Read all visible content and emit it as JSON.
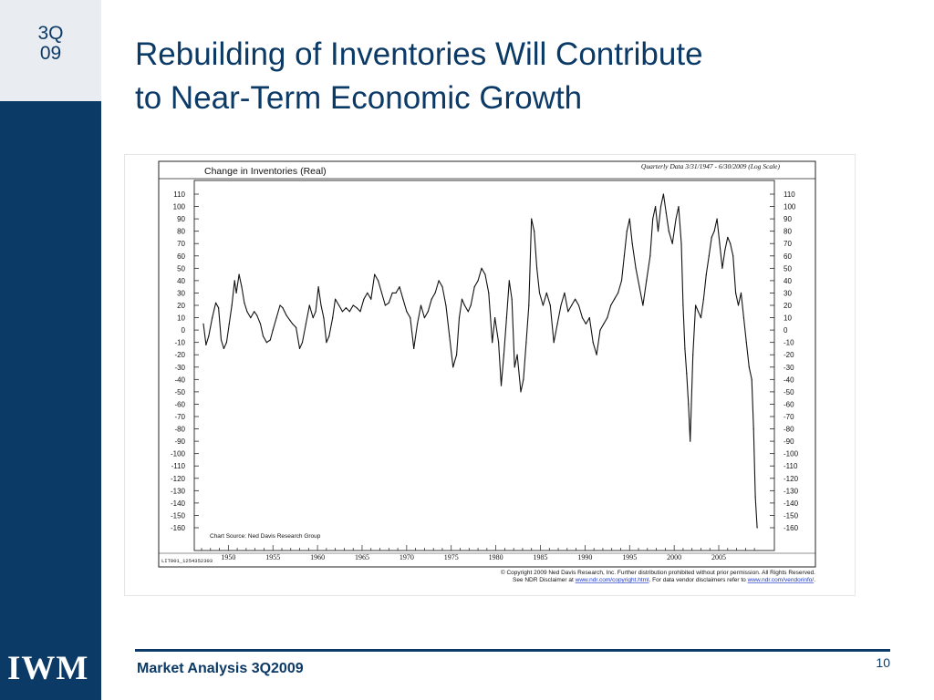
{
  "badge": {
    "quarter": "3Q",
    "year": "09"
  },
  "logo": "IWM",
  "title": {
    "line1": "Rebuilding of Inventories Will Contribute",
    "line2": "to Near-Term Economic Growth"
  },
  "footer": {
    "text": "Market Analysis 3Q2009",
    "page": "10"
  },
  "colors": {
    "navy": "#0c3a66",
    "badge_bg": "#e9ecf1",
    "link": "#1a37c8"
  },
  "chart_data": {
    "type": "line",
    "title": "Change in Inventories (Real)",
    "subtitle": "Quarterly Data 3/31/1947 - 6/30/2009 (Log Scale)",
    "source": "Chart Source: Ned Davis Research Group",
    "id_label": "LIT001_1254352303",
    "copyright_line1": "© Copyright 2009 Ned Davis Research, Inc.  Further distribution prohibited without prior permission.  All Rights Reserved.",
    "copyright_line2a": "See NDR Disclaimer at ",
    "copyright_link1": "www.ndr.com/copyright.html",
    "copyright_line2b": ". For data vendor disclaimers refer to ",
    "copyright_link2": "www.ndr.com/vendorinfo/",
    "copyright_line2c": ".",
    "ylim": [
      -165,
      120
    ],
    "xlim": [
      1947.0,
      2009.6
    ],
    "y_ticks": [
      110,
      100,
      90,
      80,
      70,
      60,
      50,
      40,
      30,
      20,
      10,
      0,
      -10,
      -20,
      -30,
      -40,
      -50,
      -60,
      -70,
      -80,
      -90,
      -100,
      -110,
      -120,
      -130,
      -140,
      -150,
      -160
    ],
    "x_ticks": [
      1950,
      1955,
      1960,
      1965,
      1970,
      1975,
      1980,
      1985,
      1990,
      1995,
      2000,
      2005
    ],
    "grid": false,
    "legend": "none",
    "series": [
      {
        "points": [
          [
            1947.2,
            5
          ],
          [
            1947.5,
            -12
          ],
          [
            1947.8,
            -5
          ],
          [
            1948.2,
            10
          ],
          [
            1948.6,
            22
          ],
          [
            1948.9,
            18
          ],
          [
            1949.2,
            -8
          ],
          [
            1949.5,
            -15
          ],
          [
            1949.8,
            -10
          ],
          [
            1950.1,
            5
          ],
          [
            1950.4,
            20
          ],
          [
            1950.7,
            40
          ],
          [
            1950.9,
            30
          ],
          [
            1951.2,
            45
          ],
          [
            1951.5,
            35
          ],
          [
            1951.8,
            22
          ],
          [
            1952.1,
            15
          ],
          [
            1952.5,
            10
          ],
          [
            1952.9,
            15
          ],
          [
            1953.2,
            12
          ],
          [
            1953.6,
            5
          ],
          [
            1953.9,
            -5
          ],
          [
            1954.3,
            -10
          ],
          [
            1954.7,
            -8
          ],
          [
            1955.0,
            0
          ],
          [
            1955.4,
            10
          ],
          [
            1955.8,
            20
          ],
          [
            1956.1,
            18
          ],
          [
            1956.5,
            12
          ],
          [
            1956.9,
            8
          ],
          [
            1957.2,
            5
          ],
          [
            1957.6,
            2
          ],
          [
            1958.0,
            -15
          ],
          [
            1958.3,
            -10
          ],
          [
            1958.7,
            5
          ],
          [
            1959.1,
            20
          ],
          [
            1959.5,
            10
          ],
          [
            1959.8,
            15
          ],
          [
            1960.1,
            35
          ],
          [
            1960.4,
            20
          ],
          [
            1960.7,
            10
          ],
          [
            1961.0,
            -10
          ],
          [
            1961.3,
            -5
          ],
          [
            1961.7,
            10
          ],
          [
            1962.0,
            25
          ],
          [
            1962.4,
            20
          ],
          [
            1962.8,
            15
          ],
          [
            1963.2,
            18
          ],
          [
            1963.6,
            15
          ],
          [
            1964.0,
            20
          ],
          [
            1964.4,
            18
          ],
          [
            1964.8,
            15
          ],
          [
            1965.2,
            25
          ],
          [
            1965.6,
            30
          ],
          [
            1966.0,
            25
          ],
          [
            1966.4,
            45
          ],
          [
            1966.8,
            40
          ],
          [
            1967.2,
            30
          ],
          [
            1967.6,
            20
          ],
          [
            1968.0,
            22
          ],
          [
            1968.4,
            30
          ],
          [
            1968.8,
            30
          ],
          [
            1969.2,
            35
          ],
          [
            1969.6,
            25
          ],
          [
            1970.0,
            15
          ],
          [
            1970.4,
            10
          ],
          [
            1970.8,
            -15
          ],
          [
            1971.2,
            5
          ],
          [
            1971.6,
            20
          ],
          [
            1972.0,
            10
          ],
          [
            1972.4,
            15
          ],
          [
            1972.8,
            25
          ],
          [
            1973.2,
            30
          ],
          [
            1973.6,
            40
          ],
          [
            1974.0,
            35
          ],
          [
            1974.4,
            20
          ],
          [
            1974.8,
            -5
          ],
          [
            1975.2,
            -30
          ],
          [
            1975.6,
            -20
          ],
          [
            1975.9,
            10
          ],
          [
            1976.2,
            25
          ],
          [
            1976.5,
            20
          ],
          [
            1976.9,
            15
          ],
          [
            1977.2,
            20
          ],
          [
            1977.6,
            35
          ],
          [
            1978.0,
            40
          ],
          [
            1978.4,
            50
          ],
          [
            1978.8,
            45
          ],
          [
            1979.2,
            30
          ],
          [
            1979.6,
            -10
          ],
          [
            1979.9,
            10
          ],
          [
            1980.3,
            -10
          ],
          [
            1980.6,
            -45
          ],
          [
            1980.9,
            -20
          ],
          [
            1981.2,
            10
          ],
          [
            1981.5,
            40
          ],
          [
            1981.8,
            25
          ],
          [
            1982.1,
            -30
          ],
          [
            1982.4,
            -20
          ],
          [
            1982.8,
            -50
          ],
          [
            1983.1,
            -40
          ],
          [
            1983.4,
            -10
          ],
          [
            1983.7,
            20
          ],
          [
            1984.0,
            90
          ],
          [
            1984.3,
            80
          ],
          [
            1984.6,
            50
          ],
          [
            1984.9,
            30
          ],
          [
            1985.3,
            20
          ],
          [
            1985.7,
            30
          ],
          [
            1986.1,
            20
          ],
          [
            1986.5,
            -10
          ],
          [
            1986.9,
            5
          ],
          [
            1987.3,
            20
          ],
          [
            1987.7,
            30
          ],
          [
            1988.1,
            15
          ],
          [
            1988.5,
            20
          ],
          [
            1988.9,
            25
          ],
          [
            1989.3,
            20
          ],
          [
            1989.7,
            10
          ],
          [
            1990.1,
            5
          ],
          [
            1990.5,
            10
          ],
          [
            1990.9,
            -10
          ],
          [
            1991.3,
            -20
          ],
          [
            1991.7,
            0
          ],
          [
            1992.1,
            5
          ],
          [
            1992.5,
            10
          ],
          [
            1992.9,
            20
          ],
          [
            1993.3,
            25
          ],
          [
            1993.7,
            30
          ],
          [
            1994.1,
            40
          ],
          [
            1994.4,
            60
          ],
          [
            1994.7,
            80
          ],
          [
            1995.0,
            90
          ],
          [
            1995.3,
            70
          ],
          [
            1995.7,
            50
          ],
          [
            1996.1,
            35
          ],
          [
            1996.5,
            20
          ],
          [
            1996.9,
            40
          ],
          [
            1997.3,
            60
          ],
          [
            1997.6,
            90
          ],
          [
            1997.9,
            100
          ],
          [
            1998.2,
            80
          ],
          [
            1998.5,
            100
          ],
          [
            1998.8,
            110
          ],
          [
            1999.1,
            95
          ],
          [
            1999.4,
            80
          ],
          [
            1999.8,
            70
          ],
          [
            2000.2,
            90
          ],
          [
            2000.5,
            100
          ],
          [
            2000.8,
            70
          ],
          [
            2001.0,
            20
          ],
          [
            2001.2,
            -15
          ],
          [
            2001.4,
            -35
          ],
          [
            2001.6,
            -60
          ],
          [
            2001.8,
            -90
          ],
          [
            2002.1,
            -20
          ],
          [
            2002.4,
            20
          ],
          [
            2002.7,
            15
          ],
          [
            2003.0,
            10
          ],
          [
            2003.3,
            25
          ],
          [
            2003.6,
            45
          ],
          [
            2003.9,
            60
          ],
          [
            2004.2,
            75
          ],
          [
            2004.5,
            80
          ],
          [
            2004.8,
            90
          ],
          [
            2005.1,
            70
          ],
          [
            2005.4,
            50
          ],
          [
            2005.7,
            65
          ],
          [
            2006.0,
            75
          ],
          [
            2006.3,
            70
          ],
          [
            2006.6,
            60
          ],
          [
            2006.9,
            30
          ],
          [
            2007.2,
            20
          ],
          [
            2007.5,
            30
          ],
          [
            2007.8,
            10
          ],
          [
            2008.1,
            -10
          ],
          [
            2008.4,
            -30
          ],
          [
            2008.7,
            -40
          ],
          [
            2008.9,
            -80
          ],
          [
            2009.1,
            -135
          ],
          [
            2009.3,
            -160
          ]
        ]
      }
    ]
  }
}
